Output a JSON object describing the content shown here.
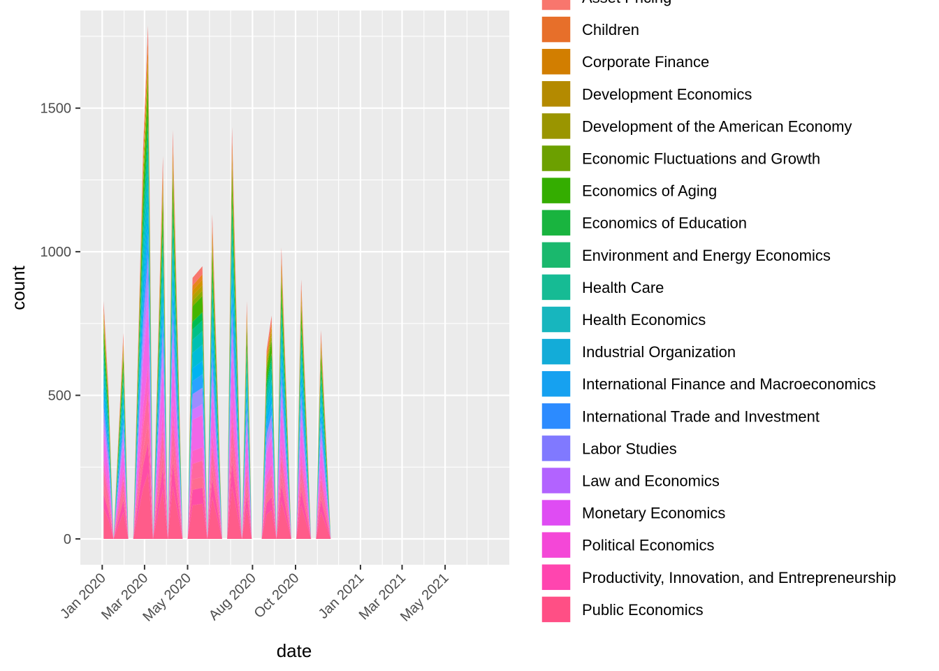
{
  "chart_data": {
    "type": "area",
    "stacked": true,
    "xlabel": "date",
    "ylabel": "count",
    "xlim": [
      "2019-12-01",
      "2021-07-31"
    ],
    "ylim": [
      -90,
      1840
    ],
    "x_ticks": [
      {
        "date": "2020-01-01",
        "label": "Jan 2020"
      },
      {
        "date": "2020-03-01",
        "label": "Mar 2020"
      },
      {
        "date": "2020-05-01",
        "label": "May 2020"
      },
      {
        "date": "2020-08-01",
        "label": "Aug 2020"
      },
      {
        "date": "2020-10-01",
        "label": "Oct 2020"
      },
      {
        "date": "2021-01-01",
        "label": "Jan 2021"
      },
      {
        "date": "2021-03-01",
        "label": "Mar 2021"
      },
      {
        "date": "2021-05-01",
        "label": "May 2021"
      }
    ],
    "y_ticks": [
      0,
      500,
      1000,
      1500
    ],
    "grid": true,
    "legend_position": "right",
    "x": [
      "2020-01-03",
      "2020-01-10",
      "2020-01-17",
      "2020-01-31",
      "2020-02-07",
      "2020-02-14",
      "2020-02-28",
      "2020-03-06",
      "2020-03-13",
      "2020-03-27",
      "2020-04-03",
      "2020-04-10",
      "2020-04-24",
      "2020-05-01",
      "2020-05-08",
      "2020-05-22",
      "2020-05-29",
      "2020-06-05",
      "2020-06-19",
      "2020-06-26",
      "2020-07-03",
      "2020-07-17",
      "2020-07-24",
      "2020-07-31",
      "2020-08-14",
      "2020-08-21",
      "2020-08-28",
      "2020-09-04",
      "2020-09-11",
      "2020-09-25",
      "2020-10-02",
      "2020-10-09",
      "2020-10-23",
      "2020-10-30",
      "2020-11-06",
      "2020-11-20",
      "2020-11-27",
      "2020-12-04",
      "2020-12-18",
      "2020-12-25",
      "2021-01-01",
      "2021-01-15",
      "2021-01-22",
      "2021-01-29",
      "2021-02-12",
      "2021-02-19",
      "2021-02-26",
      "2021-03-12",
      "2021-03-19",
      "2021-03-26",
      "2021-04-09",
      "2021-04-16",
      "2021-04-23",
      "2021-05-07",
      "2021-05-14",
      "2021-05-21",
      "2021-06-04",
      "2021-06-11"
    ],
    "totals": [
      820,
      510,
      0,
      710,
      0,
      0,
      1350,
      1770,
      0,
      1320,
      0,
      1410,
      0,
      0,
      900,
      940,
      0,
      1120,
      0,
      0,
      1420,
      0,
      820,
      0,
      0,
      650,
      770,
      0,
      1005,
      0,
      0,
      895,
      0,
      0,
      720,
      0,
      0,
      0,
      0,
      0,
      0,
      0,
      0,
      0,
      0,
      0,
      0,
      0,
      0,
      0,
      0,
      0,
      0,
      0,
      0,
      0,
      0,
      0
    ],
    "series": [
      {
        "name": "Asset Pricing",
        "color": "#F8766D"
      },
      {
        "name": "Children",
        "color": "#E7851E"
      },
      {
        "name": "Corporate Finance",
        "color": "#D09400"
      },
      {
        "name": "Development Economics",
        "color": "#B2A100"
      },
      {
        "name": "Development of the American Economy",
        "color": "#89AC00"
      },
      {
        "name": "Economic Fluctuations and Growth",
        "color": "#45B500"
      },
      {
        "name": "Economics of Aging",
        "color": "#00BC51"
      },
      {
        "name": "Economics of Education",
        "color": "#00C087"
      },
      {
        "name": "Environment and Energy Economics",
        "color": "#00C0B2"
      },
      {
        "name": "Health Care",
        "color": "#00BCD6"
      },
      {
        "name": "Health Economics",
        "color": "#00B3F2"
      },
      {
        "name": "Industrial Organization",
        "color": "#29A3FF"
      },
      {
        "name": "International Finance and Macroeconomics",
        "color": "#9C8DFF"
      },
      {
        "name": "International Trade and Investment",
        "color": "#D277FF"
      },
      {
        "name": "Labor Studies",
        "color": "#F166E8"
      },
      {
        "name": "Law and Economics",
        "color": "#FF61C7"
      },
      {
        "name": "Monetary Economics",
        "color": "#FF689E"
      },
      {
        "name": "Political Economics",
        "color": "#FF6C91"
      },
      {
        "name": "Productivity, Innovation, and Entrepreneurship",
        "color": "#FF4DA6"
      },
      {
        "name": "Public Economics",
        "color": "#FF5C8A"
      }
    ],
    "legend": [
      {
        "label": "Asset Pricing",
        "color": "#F8766D"
      },
      {
        "label": "Children",
        "color": "#E76F2A"
      },
      {
        "label": "Corporate Finance",
        "color": "#D27E00"
      },
      {
        "label": "Development Economics",
        "color": "#B48A00"
      },
      {
        "label": "Development of the American Economy",
        "color": "#9A9500"
      },
      {
        "label": "Economic Fluctuations and Growth",
        "color": "#6CA000"
      },
      {
        "label": "Economics of Aging",
        "color": "#34AD00"
      },
      {
        "label": "Economics of Education",
        "color": "#19B43F"
      },
      {
        "label": "Environment and Energy Economics",
        "color": "#1AB86D"
      },
      {
        "label": "Health Care",
        "color": "#16BB94"
      },
      {
        "label": "Health Economics",
        "color": "#17B6BE"
      },
      {
        "label": "Industrial Organization",
        "color": "#13ACD8"
      },
      {
        "label": "International Finance and Macroeconomics",
        "color": "#16A1F0"
      },
      {
        "label": "International Trade and Investment",
        "color": "#2C8BFF"
      },
      {
        "label": "Labor Studies",
        "color": "#8079FF"
      },
      {
        "label": "Law and Economics",
        "color": "#B263FF"
      },
      {
        "label": "Monetary Economics",
        "color": "#DF4CF3"
      },
      {
        "label": "Political Economics",
        "color": "#F447D7"
      },
      {
        "label": "Productivity, Innovation, and Entrepreneurship",
        "color": "#FF45AF"
      },
      {
        "label": "Public Economics",
        "color": "#FF4F85"
      }
    ]
  }
}
